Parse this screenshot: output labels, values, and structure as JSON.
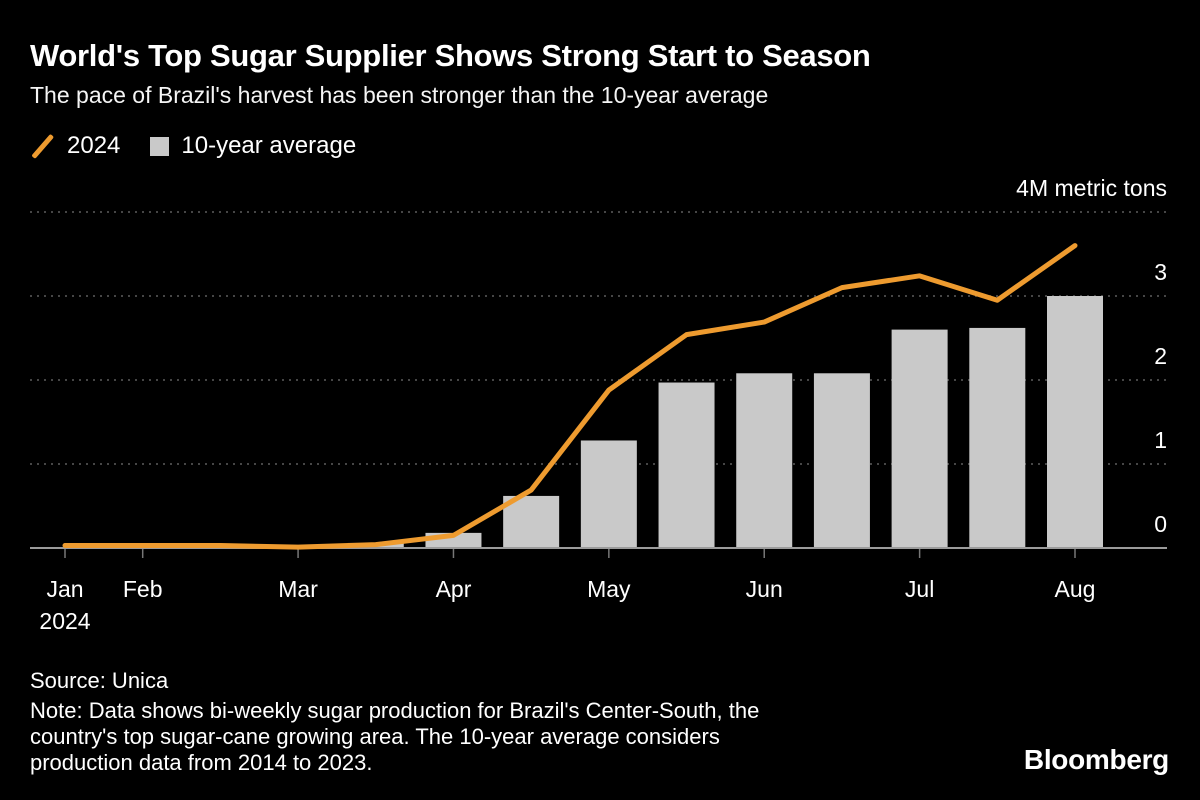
{
  "chart_data": {
    "type": "bar+line",
    "title": "World's Top Sugar Supplier Shows Strong Start to Season",
    "subtitle": "The pace of Brazil's harvest has been stronger than the 10-year average",
    "categories": [
      "Jan H2",
      "Feb H1",
      "Feb H2",
      "Mar H1",
      "Mar H2",
      "Apr H1",
      "Apr H2",
      "May H1",
      "May H2",
      "Jun H1",
      "Jun H2",
      "Jul H1",
      "Jul H2",
      "Aug H1"
    ],
    "series": [
      {
        "name": "2024",
        "type": "line",
        "color": "#EE9B2F",
        "values": [
          0.03,
          0.03,
          0.03,
          0.01,
          0.04,
          0.15,
          0.69,
          1.88,
          2.54,
          2.69,
          3.1,
          3.24,
          2.95,
          3.6
        ]
      },
      {
        "name": "10-year average",
        "type": "bar",
        "color": "#C9C9C9",
        "values": [
          0.01,
          0.01,
          0.01,
          0.02,
          0.06,
          0.18,
          0.62,
          1.28,
          1.97,
          2.08,
          2.08,
          2.6,
          2.62,
          3.0
        ]
      }
    ],
    "y_ticks": [
      {
        "value": 4,
        "label": "4M metric tons"
      },
      {
        "value": 3,
        "label": "3"
      },
      {
        "value": 2,
        "label": "2"
      },
      {
        "value": 1,
        "label": "1"
      },
      {
        "value": 0,
        "label": "0"
      }
    ],
    "ylim": [
      0,
      4
    ],
    "x_labels": [
      {
        "i": 0,
        "label": "Jan",
        "sub": "2024"
      },
      {
        "i": 1,
        "label": "Feb"
      },
      {
        "i": 3,
        "label": "Mar"
      },
      {
        "i": 5,
        "label": "Apr"
      },
      {
        "i": 7,
        "label": "May"
      },
      {
        "i": 9,
        "label": "Jun"
      },
      {
        "i": 11,
        "label": "Jul"
      },
      {
        "i": 13,
        "label": "Aug"
      }
    ],
    "grid": "dashed-horizontal",
    "legend_position": "top-left",
    "colors": {
      "background": "#000000",
      "text": "#FFFFFF",
      "grid": "#5E5E5E",
      "axis": "#9B9B9B"
    }
  },
  "footer": {
    "source": "Source: Unica",
    "note_lines": [
      "Note: Data shows bi-weekly sugar production for Brazil's Center-South, the",
      "country's top sugar-cane growing area. The 10-year average considers",
      "production data from 2014 to 2023."
    ],
    "brand": "Bloomberg"
  }
}
